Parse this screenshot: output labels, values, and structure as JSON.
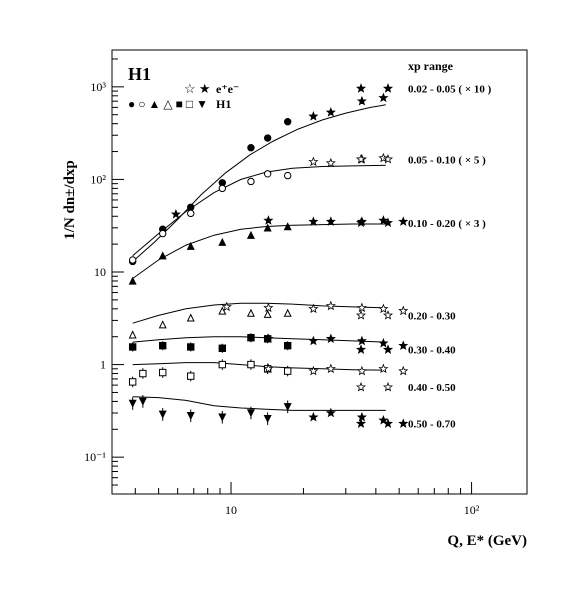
{
  "chart_data": {
    "type": "scatter",
    "title": "H1",
    "xlabel": "Q, E* (GeV)",
    "ylabel": "1/N dn±/dxp",
    "x_scale": "log",
    "y_scale": "log",
    "xlim": [
      3.2,
      170
    ],
    "ylim": [
      0.04,
      2500
    ],
    "x_ticks": [
      {
        "value": 10,
        "label": "10"
      },
      {
        "value": 100,
        "label": "10²"
      }
    ],
    "y_ticks": [
      {
        "value": 0.1,
        "label": "10⁻¹"
      },
      {
        "value": 1,
        "label": "1"
      },
      {
        "value": 10,
        "label": "10"
      },
      {
        "value": 100,
        "label": "10²"
      },
      {
        "value": 1000,
        "label": "10³"
      }
    ],
    "legend": {
      "ee_symbols": "☆ ★",
      "ee_label": "e⁺e⁻",
      "h1_symbols": "● ○ ▲ △ ■ □ ▼",
      "h1_label": "H1",
      "range_header": "xp range"
    },
    "series": [
      {
        "name": "0.02 - 0.05",
        "factor": "( × 10 )",
        "label_y": 960,
        "ee_star": "★",
        "ee_x": 96,
        "h1": {
          "marker": "circle-filled",
          "x": [
            3.9,
            5.2,
            6.8,
            9.2,
            12.1,
            14.2,
            17.2
          ],
          "y": [
            13,
            29,
            50,
            92,
            220,
            280,
            420
          ],
          "err": 0.07
        },
        "ee": {
          "open": false,
          "x": [
            5.9,
            22,
            26,
            35,
            43
          ],
          "y": [
            42,
            480,
            530,
            700,
            760
          ]
        },
        "curve": {
          "x": [
            3.9,
            4.8,
            6,
            7.5,
            9.5,
            12,
            15,
            19,
            24,
            30,
            38,
            44
          ],
          "y": [
            13,
            21,
            37,
            68,
            118,
            185,
            260,
            350,
            440,
            520,
            600,
            640
          ]
        }
      },
      {
        "name": "0.05 - 0.10",
        "factor": "( × 5 )",
        "label_y": 165,
        "ee_star": "☆",
        "ee_x": 96,
        "h1": {
          "marker": "circle-open",
          "x": [
            3.9,
            5.2,
            6.8,
            9.2,
            12.1,
            14.2,
            17.2
          ],
          "y": [
            13.5,
            26,
            43,
            80,
            95,
            115,
            110
          ],
          "err": 0.06
        },
        "ee": {
          "open": true,
          "x": [
            22,
            26,
            35,
            43
          ],
          "y": [
            155,
            150,
            165,
            170
          ]
        },
        "curve": {
          "x": [
            3.9,
            5,
            6.5,
            8.5,
            11,
            14,
            18,
            24,
            32,
            44
          ],
          "y": [
            15,
            26,
            45,
            72,
            100,
            120,
            132,
            138,
            140,
            142
          ]
        }
      },
      {
        "name": "0.10 - 0.20",
        "factor": "( × 3 )",
        "label_y": 34,
        "ee_star": "★",
        "ee_x": 96,
        "h1": {
          "marker": "triangle-filled",
          "x": [
            3.9,
            5.2,
            6.8,
            9.2,
            12.1,
            14.2,
            17.2
          ],
          "y": [
            8,
            15,
            19,
            21,
            25,
            30,
            31
          ],
          "err": 0.05
        },
        "ee": {
          "open": false,
          "x": [
            14.3,
            22,
            26,
            35,
            43,
            52
          ],
          "y": [
            36,
            35,
            35,
            35,
            36,
            35
          ]
        },
        "curve": {
          "x": [
            3.9,
            5,
            6.5,
            8.5,
            11,
            14,
            18,
            24,
            32,
            44
          ],
          "y": [
            8.5,
            13.5,
            19.5,
            25,
            29,
            31,
            32,
            32.5,
            33,
            33
          ]
        }
      },
      {
        "name": "0.20 - 0.30",
        "factor": "",
        "label_y": 3.4,
        "ee_star": "☆",
        "ee_x": 96,
        "h1": {
          "marker": "triangle-open",
          "x": [
            3.9,
            5.2,
            6.8,
            9.2,
            12.1,
            14.2,
            17.2
          ],
          "y": [
            2.1,
            2.7,
            3.2,
            3.8,
            3.6,
            3.5,
            3.6
          ],
          "err": 0.09
        },
        "ee": {
          "open": true,
          "x": [
            9.6,
            14.3,
            22,
            26,
            35,
            43,
            52
          ],
          "y": [
            4.2,
            4.1,
            4.0,
            4.3,
            4.1,
            4.0,
            3.8
          ]
        },
        "curve": {
          "x": [
            3.9,
            5,
            6.5,
            8.5,
            11,
            14,
            18,
            24,
            32,
            44
          ],
          "y": [
            2.8,
            3.4,
            4.0,
            4.4,
            4.6,
            4.6,
            4.5,
            4.3,
            4.2,
            4.1
          ]
        }
      },
      {
        "name": "0.30 - 0.40",
        "factor": "",
        "label_y": 1.45,
        "ee_star": "★",
        "ee_x": 96,
        "h1": {
          "marker": "square-filled",
          "x": [
            3.9,
            5.2,
            6.8,
            9.2,
            12.1,
            14.2,
            17.2
          ],
          "y": [
            1.55,
            1.6,
            1.55,
            1.5,
            1.95,
            1.9,
            1.6
          ],
          "err": 0.12
        },
        "ee": {
          "open": false,
          "x": [
            14.3,
            22,
            26,
            35,
            43,
            52
          ],
          "y": [
            1.9,
            1.8,
            1.9,
            1.8,
            1.7,
            1.6
          ]
        },
        "curve": {
          "x": [
            3.9,
            5,
            6.5,
            8.5,
            11,
            14,
            18,
            24,
            32,
            44
          ],
          "y": [
            1.75,
            1.85,
            1.95,
            2.0,
            2.0,
            1.95,
            1.9,
            1.85,
            1.8,
            1.75
          ]
        }
      },
      {
        "name": "0.40 - 0.50",
        "factor": "",
        "label_y": 0.57,
        "ee_star": "☆",
        "ee_x": 96,
        "h1": {
          "marker": "square-open",
          "x": [
            3.9,
            4.3,
            5.2,
            6.8,
            9.2,
            12.1,
            14.2,
            17.2
          ],
          "y": [
            0.65,
            0.8,
            0.82,
            0.75,
            1.0,
            1.0,
            0.9,
            0.85
          ],
          "err": 0.14
        },
        "ee": {
          "open": true,
          "x": [
            14.3,
            22,
            26,
            35,
            43,
            52
          ],
          "y": [
            0.9,
            0.85,
            0.9,
            0.85,
            0.9,
            0.85
          ]
        },
        "curve": {
          "x": [
            3.9,
            5,
            6.5,
            8.5,
            11,
            14,
            18,
            24,
            32,
            44
          ],
          "y": [
            1.0,
            1.02,
            1.05,
            1.05,
            1.0,
            0.95,
            0.92,
            0.9,
            0.88,
            0.87
          ]
        }
      },
      {
        "name": "0.50 - 0.70",
        "factor": "",
        "label_y": 0.23,
        "ee_star": "★",
        "ee_x": 96,
        "h1": {
          "marker": "triangle-down-filled",
          "x": [
            3.9,
            4.3,
            5.2,
            6.8,
            9.2,
            12.1,
            14.2,
            17.2
          ],
          "y": [
            0.38,
            0.4,
            0.29,
            0.28,
            0.27,
            0.3,
            0.26,
            0.35
          ],
          "err": 0.17
        },
        "ee": {
          "open": false,
          "x": [
            22,
            26,
            35,
            43,
            52
          ],
          "y": [
            0.27,
            0.3,
            0.27,
            0.25,
            0.23
          ]
        },
        "curve": {
          "x": [
            3.9,
            5,
            6.5,
            8.5,
            11,
            14,
            18,
            24,
            32,
            44
          ],
          "y": [
            0.45,
            0.44,
            0.41,
            0.36,
            0.34,
            0.33,
            0.32,
            0.32,
            0.32,
            0.32
          ]
        }
      }
    ]
  }
}
